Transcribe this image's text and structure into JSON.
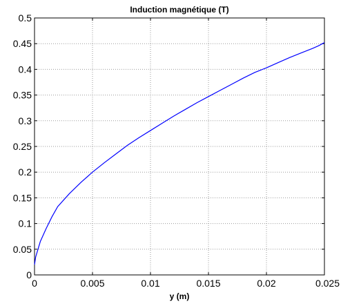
{
  "chart_data": {
    "type": "line",
    "title": "Induction magnétique (T)",
    "xlabel": "y (m)",
    "ylabel": "",
    "xlim": [
      0,
      0.025
    ],
    "ylim": [
      0,
      0.5
    ],
    "grid": true,
    "x_ticks": [
      "0",
      "0.005",
      "0.01",
      "0.015",
      "0.02",
      "0.025"
    ],
    "y_ticks": [
      "0",
      "0.05",
      "0.1",
      "0.15",
      "0.2",
      "0.25",
      "0.3",
      "0.35",
      "0.4",
      "0.45",
      "0.5"
    ],
    "series_color": "#0000ff",
    "series": [
      {
        "x": [
          0,
          0.0001,
          0.0003,
          0.0005,
          0.001,
          0.0015,
          0.002,
          0.003,
          0.004,
          0.005,
          0.006,
          0.007,
          0.008,
          0.009,
          0.01,
          0.011,
          0.012,
          0.013,
          0.014,
          0.015,
          0.016,
          0.017,
          0.018,
          0.019,
          0.02,
          0.021,
          0.022,
          0.023,
          0.024,
          0.0245,
          0.025
        ],
        "y": [
          0.02,
          0.035,
          0.05,
          0.065,
          0.09,
          0.113,
          0.133,
          0.158,
          0.18,
          0.2,
          0.218,
          0.235,
          0.252,
          0.267,
          0.281,
          0.295,
          0.309,
          0.322,
          0.335,
          0.347,
          0.359,
          0.371,
          0.383,
          0.394,
          0.403,
          0.413,
          0.423,
          0.432,
          0.441,
          0.446,
          0.452
        ]
      }
    ]
  }
}
